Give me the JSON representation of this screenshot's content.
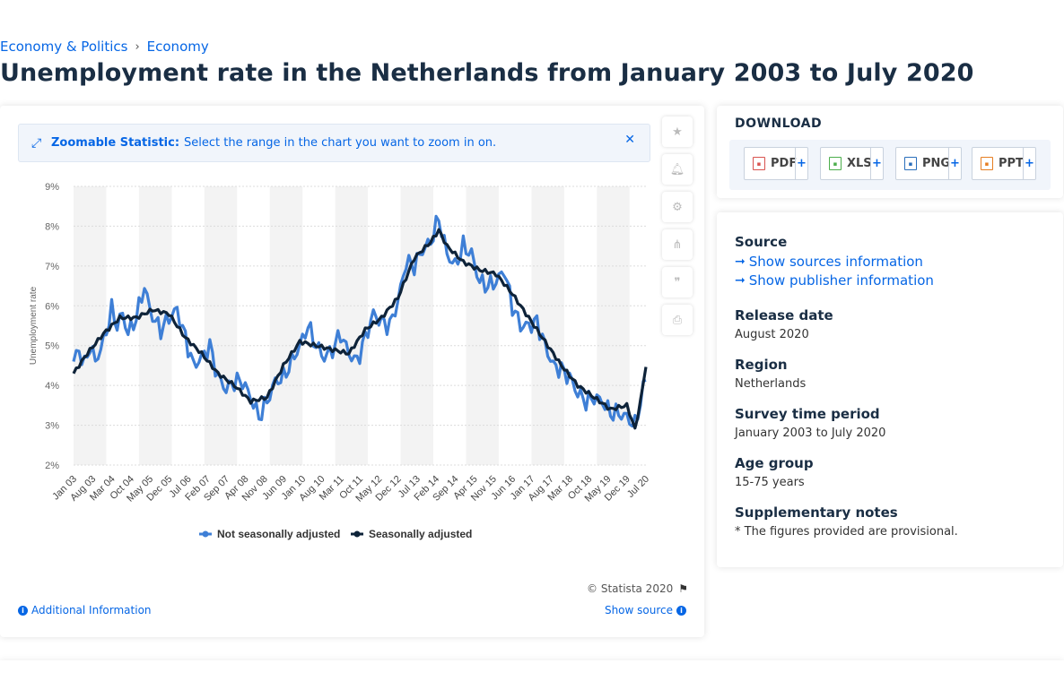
{
  "breadcrumb": {
    "items": [
      "Economy & Politics",
      "Economy"
    ]
  },
  "page_title": "Unemployment rate in the Netherlands from January 2003 to July 2020",
  "zoom_banner": {
    "title": "Zoomable Statistic:",
    "text": "Select the range in the chart you want to zoom in on."
  },
  "tools": [
    "star-icon",
    "bell-icon",
    "gear-icon",
    "share-icon",
    "quote-icon",
    "print-icon"
  ],
  "chart_footer": {
    "copyright": "© Statista 2020",
    "additional_info": "Additional Information",
    "show_source": "Show source"
  },
  "download": {
    "title": "DOWNLOAD",
    "buttons": [
      "PDF",
      "XLS",
      "PNG",
      "PPT"
    ],
    "plus": "+"
  },
  "details": {
    "source_label": "Source",
    "source_link": "Show sources information",
    "publisher_link": "Show publisher information",
    "release_label": "Release date",
    "release_value": "August 2020",
    "region_label": "Region",
    "region_value": "Netherlands",
    "survey_label": "Survey time period",
    "survey_value": "January 2003 to July 2020",
    "age_label": "Age group",
    "age_value": "15-75 years",
    "notes_label": "Supplementary notes",
    "notes_value": "* The figures provided are provisional."
  },
  "colors": {
    "accent": "#0666e5",
    "series_nsa": "#3e7fd6",
    "series_sa": "#0e2339"
  },
  "chart_data": {
    "type": "line",
    "ylabel": "Unemployment rate",
    "xlabel": "",
    "ylim": [
      2,
      9
    ],
    "yticks": [
      2,
      3,
      4,
      5,
      6,
      7,
      8,
      9
    ],
    "ytick_format": "{v}%",
    "x_range": [
      "Jan 03",
      "Jul 20"
    ],
    "x_ticks": [
      "Jan 03",
      "Aug 03",
      "Mar 04",
      "Oct 04",
      "May 05",
      "Dec 05",
      "Jul 06",
      "Feb 07",
      "Sep 07",
      "Apr 08",
      "Nov 08",
      "Jun 09",
      "Jan 10",
      "Aug 10",
      "Mar 11",
      "Oct 11",
      "May 12",
      "Dec 12",
      "Jul 13",
      "Feb 14",
      "Sep 14",
      "Apr 15",
      "Nov 15",
      "Jun 16",
      "Jan 17",
      "Aug 17",
      "Mar 18",
      "Oct 18",
      "May 19",
      "Dec 19",
      "Jul 20"
    ],
    "legend": "bottom",
    "series": [
      {
        "name": "Not seasonally adjusted",
        "anchors": [
          [
            "2003-01",
            4.6
          ],
          [
            "2003-03",
            4.9
          ],
          [
            "2003-05",
            4.5
          ],
          [
            "2003-07",
            5.0
          ],
          [
            "2003-09",
            4.6
          ],
          [
            "2003-12",
            5.1
          ],
          [
            "2004-03",
            5.9
          ],
          [
            "2004-05",
            5.5
          ],
          [
            "2004-07",
            5.8
          ],
          [
            "2004-09",
            5.3
          ],
          [
            "2004-12",
            5.7
          ],
          [
            "2005-03",
            6.5
          ],
          [
            "2005-05",
            5.9
          ],
          [
            "2005-07",
            5.6
          ],
          [
            "2005-09",
            5.4
          ],
          [
            "2005-12",
            5.7
          ],
          [
            "2006-03",
            5.9
          ],
          [
            "2006-06",
            5.2
          ],
          [
            "2006-09",
            4.5
          ],
          [
            "2006-12",
            4.7
          ],
          [
            "2007-03",
            5.0
          ],
          [
            "2007-06",
            4.2
          ],
          [
            "2007-09",
            3.9
          ],
          [
            "2007-12",
            4.1
          ],
          [
            "2008-03",
            4.1
          ],
          [
            "2008-06",
            3.7
          ],
          [
            "2008-09",
            3.2
          ],
          [
            "2008-12",
            3.6
          ],
          [
            "2009-03",
            4.1
          ],
          [
            "2009-06",
            4.2
          ],
          [
            "2009-09",
            4.6
          ],
          [
            "2009-12",
            5.0
          ],
          [
            "2010-03",
            5.5
          ],
          [
            "2010-06",
            5.0
          ],
          [
            "2010-09",
            4.7
          ],
          [
            "2010-12",
            4.9
          ],
          [
            "2011-03",
            5.3
          ],
          [
            "2011-06",
            4.8
          ],
          [
            "2011-09",
            4.6
          ],
          [
            "2011-12",
            5.2
          ],
          [
            "2012-03",
            5.8
          ],
          [
            "2012-06",
            5.6
          ],
          [
            "2012-09",
            5.5
          ],
          [
            "2012-12",
            6.1
          ],
          [
            "2013-03",
            7.1
          ],
          [
            "2013-06",
            7.0
          ],
          [
            "2013-09",
            7.4
          ],
          [
            "2013-12",
            7.6
          ],
          [
            "2014-03",
            8.2
          ],
          [
            "2014-06",
            7.3
          ],
          [
            "2014-09",
            7.0
          ],
          [
            "2014-12",
            7.5
          ],
          [
            "2015-03",
            7.3
          ],
          [
            "2015-06",
            6.6
          ],
          [
            "2015-09",
            6.5
          ],
          [
            "2015-12",
            6.6
          ],
          [
            "2016-03",
            6.9
          ],
          [
            "2016-06",
            6.0
          ],
          [
            "2016-09",
            5.5
          ],
          [
            "2016-12",
            5.5
          ],
          [
            "2017-03",
            5.6
          ],
          [
            "2017-06",
            5.0
          ],
          [
            "2017-09",
            4.5
          ],
          [
            "2017-12",
            4.4
          ],
          [
            "2018-03",
            4.2
          ],
          [
            "2018-06",
            3.8
          ],
          [
            "2018-09",
            3.6
          ],
          [
            "2018-12",
            3.7
          ],
          [
            "2019-03",
            3.6
          ],
          [
            "2019-06",
            3.3
          ],
          [
            "2019-09",
            3.3
          ],
          [
            "2019-12",
            3.2
          ],
          [
            "2020-03",
            3.0
          ],
          [
            "2020-05",
            3.6
          ],
          [
            "2020-07",
            4.2
          ]
        ]
      },
      {
        "name": "Seasonally adjusted",
        "anchors": [
          [
            "2003-01",
            4.3
          ],
          [
            "2003-06",
            4.8
          ],
          [
            "2003-12",
            5.3
          ],
          [
            "2004-06",
            5.7
          ],
          [
            "2004-12",
            5.7
          ],
          [
            "2005-06",
            5.9
          ],
          [
            "2005-12",
            5.8
          ],
          [
            "2006-06",
            5.2
          ],
          [
            "2006-12",
            4.8
          ],
          [
            "2007-06",
            4.3
          ],
          [
            "2007-12",
            4.0
          ],
          [
            "2008-06",
            3.6
          ],
          [
            "2008-12",
            3.7
          ],
          [
            "2009-06",
            4.5
          ],
          [
            "2009-12",
            5.1
          ],
          [
            "2010-06",
            5.0
          ],
          [
            "2010-12",
            4.9
          ],
          [
            "2011-06",
            4.8
          ],
          [
            "2011-12",
            5.4
          ],
          [
            "2012-06",
            5.7
          ],
          [
            "2012-12",
            6.2
          ],
          [
            "2013-06",
            7.2
          ],
          [
            "2013-12",
            7.6
          ],
          [
            "2014-03",
            7.9
          ],
          [
            "2014-06",
            7.5
          ],
          [
            "2014-12",
            7.1
          ],
          [
            "2015-06",
            6.9
          ],
          [
            "2015-12",
            6.8
          ],
          [
            "2016-06",
            6.3
          ],
          [
            "2016-12",
            5.7
          ],
          [
            "2017-06",
            5.1
          ],
          [
            "2017-12",
            4.5
          ],
          [
            "2018-06",
            4.0
          ],
          [
            "2018-12",
            3.7
          ],
          [
            "2019-06",
            3.4
          ],
          [
            "2019-12",
            3.5
          ],
          [
            "2020-03",
            2.9
          ],
          [
            "2020-05",
            3.6
          ],
          [
            "2020-07",
            4.5
          ]
        ]
      }
    ]
  }
}
